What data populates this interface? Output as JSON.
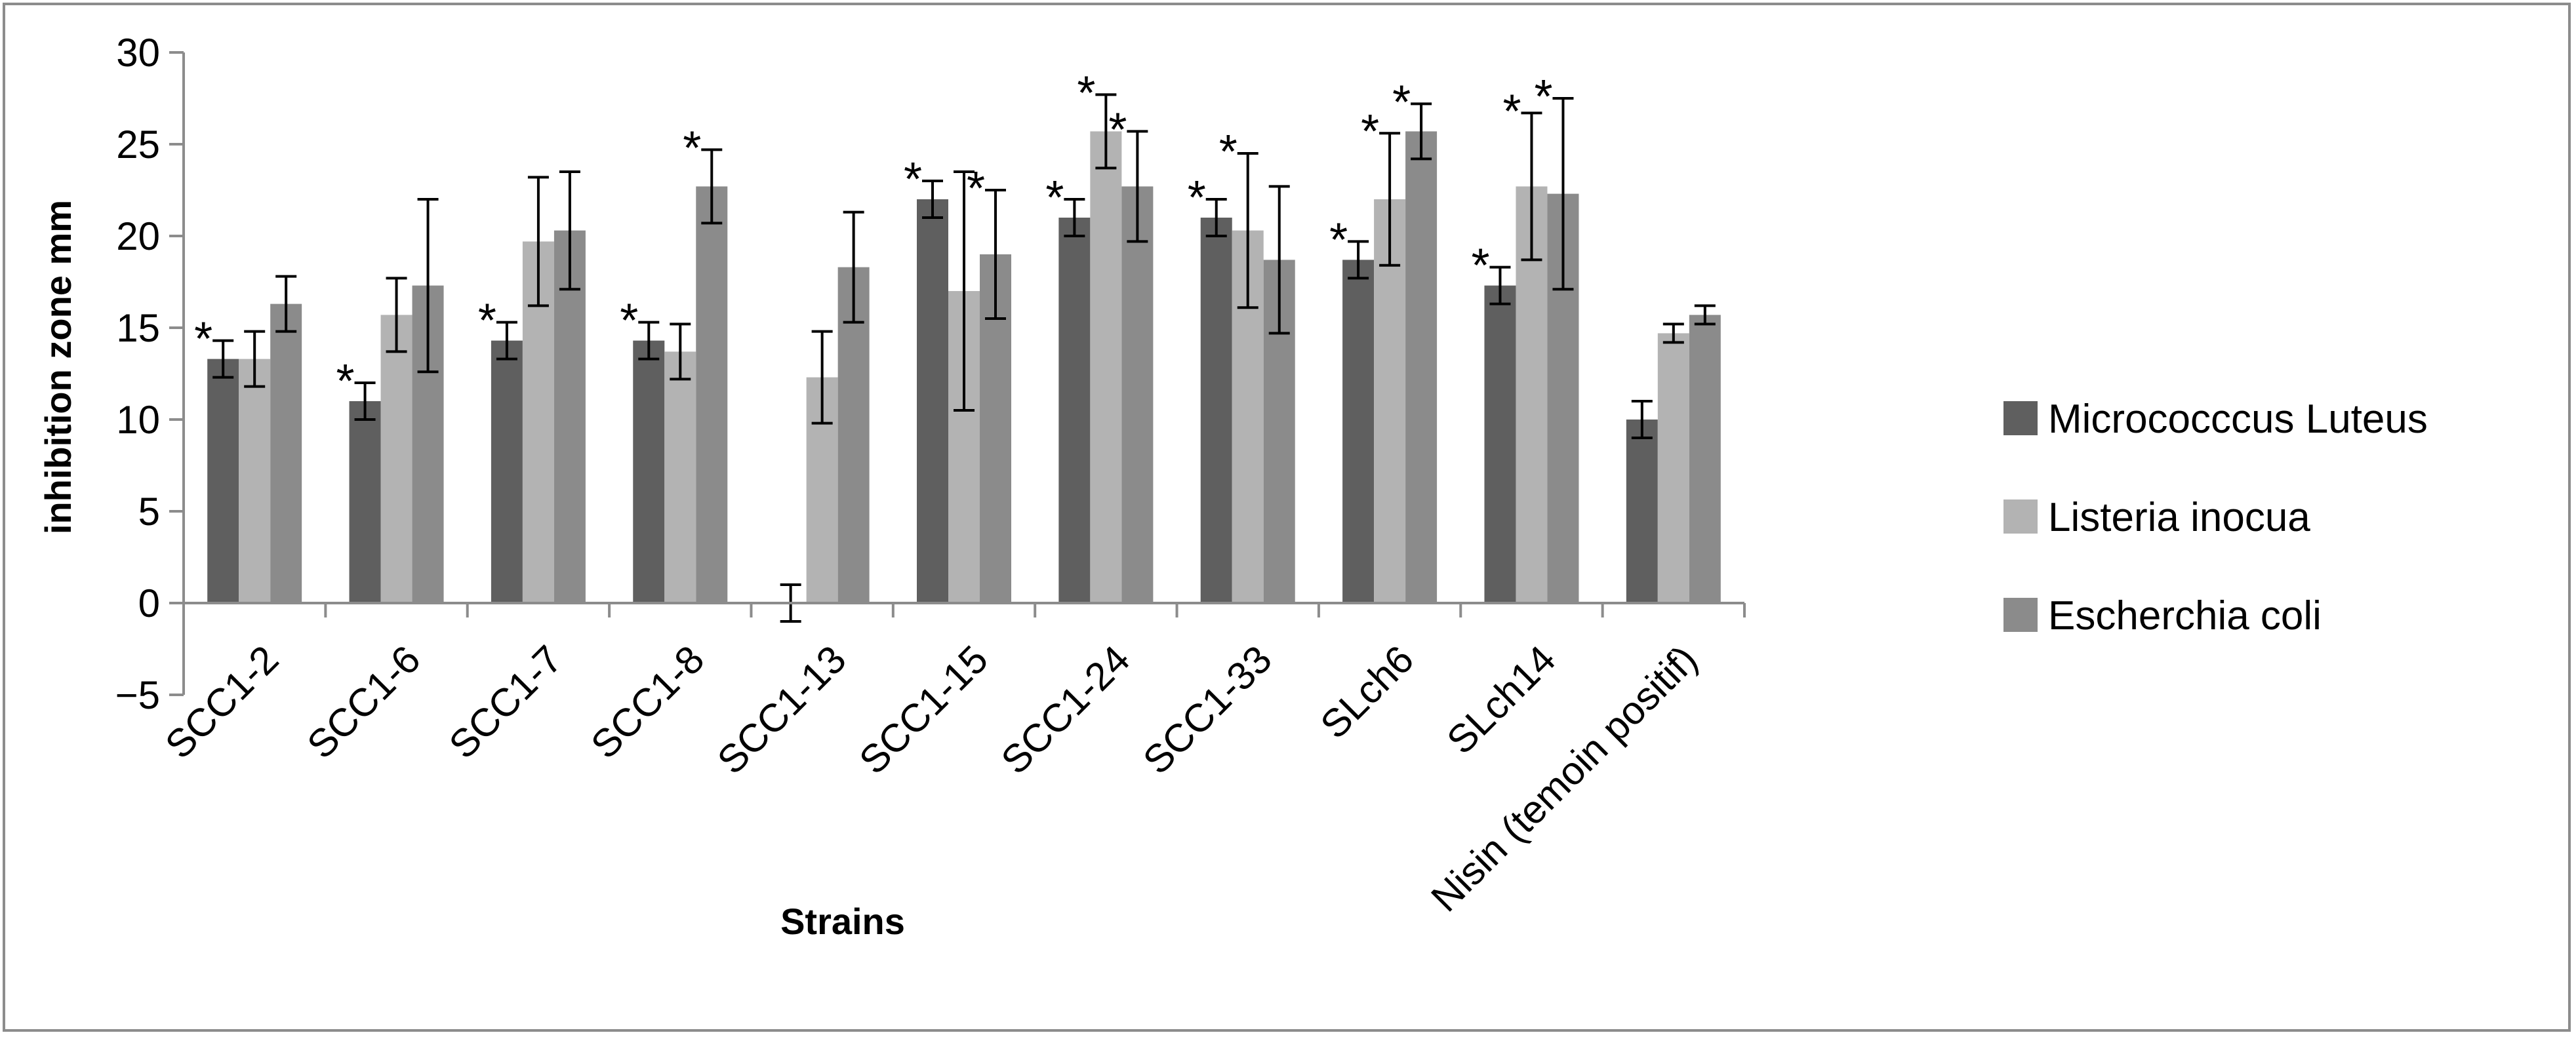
{
  "chart_data": {
    "type": "bar",
    "title": "",
    "xlabel": "Strains",
    "ylabel": "inhibition zone mm",
    "ylim": [
      -5,
      30
    ],
    "yticks": [
      -5,
      0,
      5,
      10,
      15,
      20,
      25,
      30
    ],
    "ytick_labels": [
      "−5",
      "0",
      "5",
      "10",
      "15",
      "20",
      "25",
      "30"
    ],
    "categories": [
      "SCC1-2",
      "SCC1-6",
      "SCC1-7",
      "SCC1-8",
      "SCC1-13",
      "SCC1-15",
      "SCC1-24",
      "SCC1-33",
      "SLch6",
      "SLch14",
      "Nisin (temoin positif)"
    ],
    "significance_marker": "*",
    "legend_position": "right",
    "series": [
      {
        "name": "Micrococccus Luteus",
        "color": "#5f5f5f",
        "values": [
          13.3,
          11.0,
          14.3,
          14.3,
          0,
          22.0,
          21.0,
          21.0,
          18.7,
          17.3,
          10.0
        ],
        "errors": [
          1.0,
          1.0,
          1.0,
          1.0,
          1.0,
          1.0,
          1.0,
          1.0,
          1.0,
          1.0,
          1.0
        ],
        "significant": [
          true,
          true,
          true,
          true,
          false,
          true,
          true,
          true,
          true,
          true,
          false
        ]
      },
      {
        "name": "Listeria inocua",
        "color": "#b3b3b3",
        "values": [
          13.3,
          15.7,
          19.7,
          13.7,
          12.3,
          17.0,
          25.7,
          20.3,
          22.0,
          22.7,
          14.7
        ],
        "errors": [
          1.5,
          2.0,
          3.5,
          1.5,
          2.5,
          6.5,
          2.0,
          4.2,
          3.6,
          4.0,
          0.5
        ],
        "significant": [
          false,
          false,
          false,
          false,
          false,
          false,
          true,
          true,
          true,
          true,
          false
        ]
      },
      {
        "name": "Escherchia coli",
        "color": "#8b8b8b",
        "values": [
          16.3,
          17.3,
          20.3,
          22.7,
          18.3,
          19.0,
          22.7,
          18.7,
          25.7,
          22.3,
          15.7
        ],
        "errors": [
          1.5,
          4.7,
          3.2,
          2.0,
          3.0,
          3.5,
          3.0,
          4.0,
          1.5,
          5.2,
          0.5
        ],
        "significant": [
          false,
          false,
          false,
          true,
          false,
          true,
          true,
          false,
          true,
          true,
          false
        ]
      }
    ]
  }
}
